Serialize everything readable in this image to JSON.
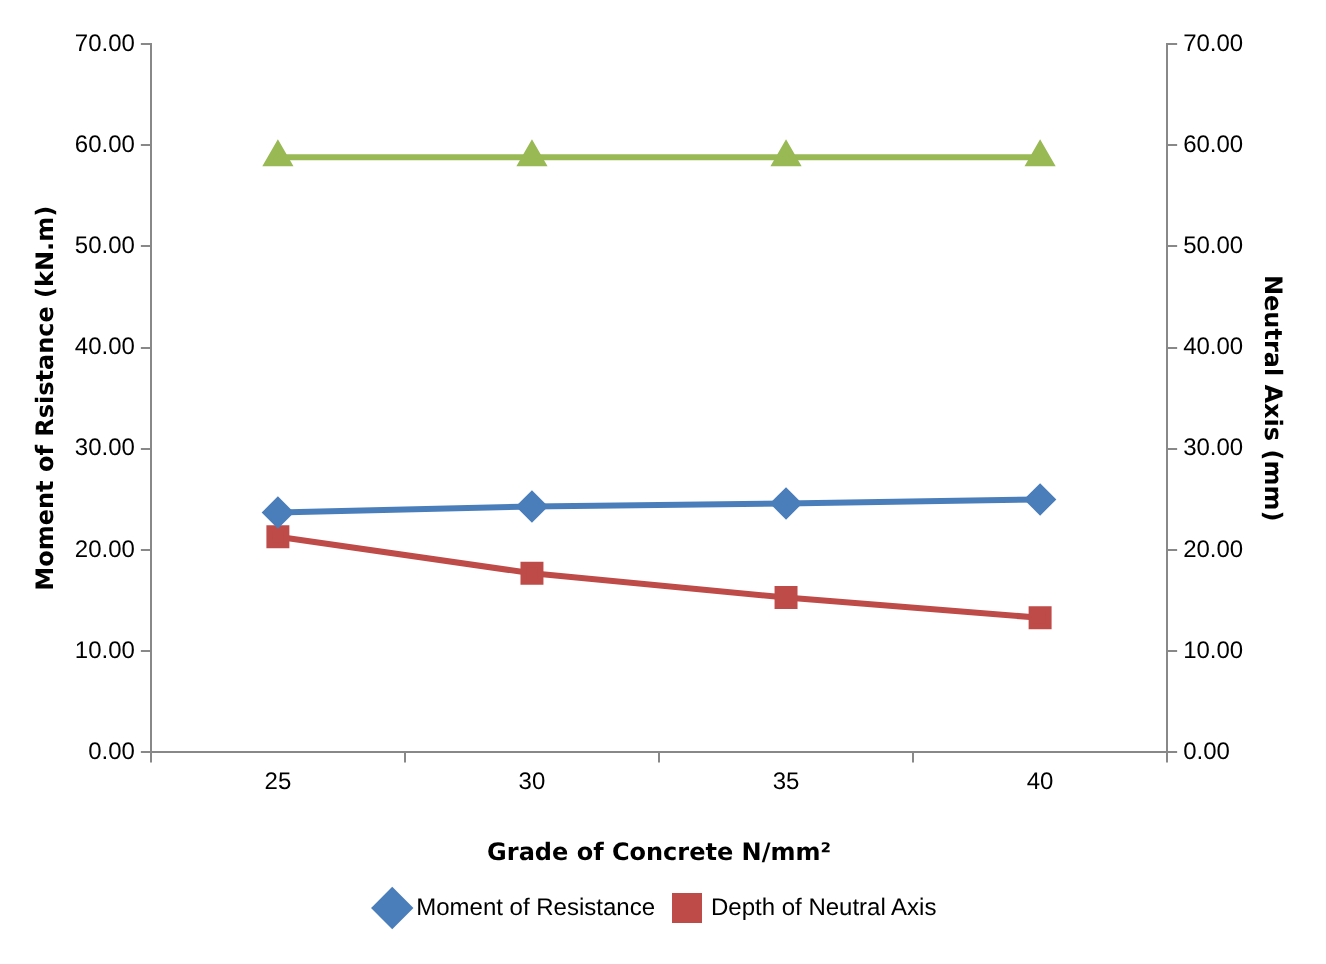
{
  "chart_data": {
    "type": "line",
    "xlabel": "Grade of Concrete N/mm²",
    "ylabel": "Moment of Rsistance (kN.m)",
    "y2label": "Neutral Axis (mm)",
    "categories": [
      "25",
      "30",
      "35",
      "40"
    ],
    "series": [
      {
        "name": "Moment of Resistance",
        "color": "#4a7ebb",
        "marker": "diamond",
        "values": [
          23.7,
          24.3,
          24.6,
          25.0
        ]
      },
      {
        "name": "Depth of Neutral Axis",
        "color": "#be4b48",
        "marker": "square",
        "values": [
          21.3,
          17.7,
          15.3,
          13.3
        ]
      },
      {
        "color": "#98b954",
        "marker": "triangle",
        "values": [
          58.8,
          58.8,
          58.8,
          58.8
        ]
      }
    ],
    "ylim": [
      0,
      70
    ],
    "yticks": [
      {
        "value": 0,
        "label": "0.00"
      },
      {
        "value": 10,
        "label": "10.00"
      },
      {
        "value": 20,
        "label": "20.00"
      },
      {
        "value": 30,
        "label": "30.00"
      },
      {
        "value": 40,
        "label": "40.00"
      },
      {
        "value": 50,
        "label": "50.00"
      },
      {
        "value": 60,
        "label": "60.00"
      },
      {
        "value": 70,
        "label": "70.00"
      }
    ],
    "y2lim": [
      0,
      70
    ],
    "y2ticks": [
      {
        "value": 0,
        "label": "0.00"
      },
      {
        "value": 10,
        "label": "10.00"
      },
      {
        "value": 20,
        "label": "20.00"
      },
      {
        "value": 30,
        "label": "30.00"
      },
      {
        "value": 40,
        "label": "40.00"
      },
      {
        "value": 50,
        "label": "50.00"
      },
      {
        "value": 60,
        "label": "60.00"
      },
      {
        "value": 70,
        "label": "70.00"
      }
    ],
    "grid": false,
    "legend": "bottom",
    "line_style": "solid"
  }
}
